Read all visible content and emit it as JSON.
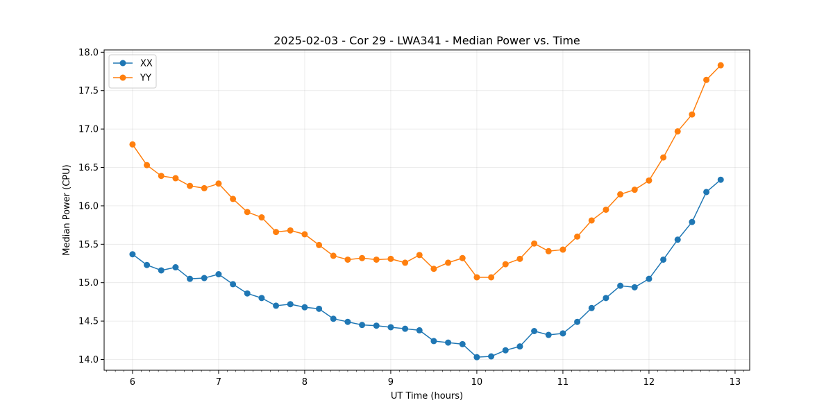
{
  "chart_data": {
    "type": "line",
    "title": "2025-02-03 - Cor 29 - LWA341 - Median Power vs. Time",
    "xlabel": "UT Time (hours)",
    "ylabel": "Median Power (CPU)",
    "xlim": [
      5.67,
      13.17
    ],
    "ylim": [
      13.86,
      18.03
    ],
    "xticks": [
      6,
      7,
      8,
      9,
      10,
      11,
      12,
      13
    ],
    "xtick_labels": [
      "6",
      "7",
      "8",
      "9",
      "10",
      "11",
      "12",
      "13"
    ],
    "yticks": [
      14.0,
      14.5,
      15.0,
      15.5,
      16.0,
      16.5,
      17.0,
      17.5,
      18.0
    ],
    "ytick_labels": [
      "14.0",
      "14.5",
      "15.0",
      "15.5",
      "16.0",
      "16.5",
      "17.0",
      "17.5",
      "18.0"
    ],
    "grid": true,
    "legend_position": "top-left",
    "x": [
      6.0,
      6.1667,
      6.3333,
      6.5,
      6.6667,
      6.8333,
      7.0,
      7.1667,
      7.3333,
      7.5,
      7.6667,
      7.8333,
      8.0,
      8.1667,
      8.3333,
      8.5,
      8.6667,
      8.8333,
      9.0,
      9.1667,
      9.3333,
      9.5,
      9.6667,
      9.8333,
      10.0,
      10.1667,
      10.3333,
      10.5,
      10.6667,
      10.8333,
      11.0,
      11.1667,
      11.3333,
      11.5,
      11.6667,
      11.8333,
      12.0,
      12.1667,
      12.3333,
      12.5,
      12.6667,
      12.8333
    ],
    "series": [
      {
        "name": "XX",
        "color": "#1f77b4",
        "values": [
          15.37,
          15.23,
          15.16,
          15.2,
          15.05,
          15.06,
          15.11,
          14.98,
          14.86,
          14.8,
          14.7,
          14.72,
          14.68,
          14.66,
          14.53,
          14.49,
          14.45,
          14.44,
          14.42,
          14.4,
          14.38,
          14.24,
          14.22,
          14.2,
          14.03,
          14.04,
          14.12,
          14.17,
          14.37,
          14.32,
          14.34,
          14.49,
          14.67,
          14.8,
          14.96,
          14.94,
          15.05,
          15.3,
          15.56,
          15.79,
          16.18,
          16.34
        ]
      },
      {
        "name": "YY",
        "color": "#ff7f0e",
        "values": [
          16.8,
          16.53,
          16.39,
          16.36,
          16.26,
          16.23,
          16.29,
          16.09,
          15.92,
          15.85,
          15.66,
          15.68,
          15.63,
          15.49,
          15.35,
          15.3,
          15.32,
          15.3,
          15.31,
          15.26,
          15.36,
          15.18,
          15.26,
          15.32,
          15.07,
          15.07,
          15.24,
          15.31,
          15.51,
          15.41,
          15.43,
          15.6,
          15.81,
          15.95,
          16.15,
          16.21,
          16.33,
          16.63,
          16.97,
          17.19,
          17.64,
          17.83
        ]
      }
    ]
  }
}
